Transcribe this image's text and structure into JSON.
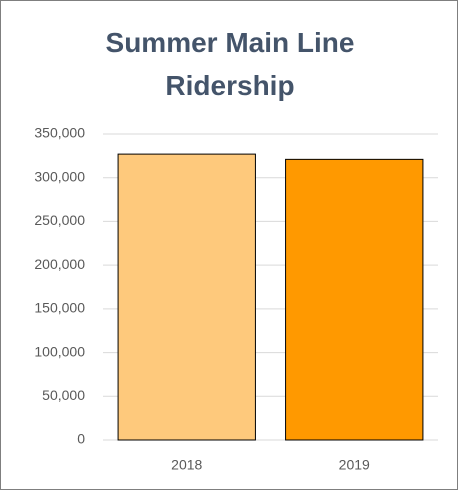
{
  "chart_data": {
    "type": "bar",
    "title": "Summer Main Line Ridership",
    "categories": [
      "2018",
      "2019"
    ],
    "values": [
      327000,
      321000
    ],
    "colors": [
      "#fec97c",
      "#ff9900"
    ],
    "ylim": [
      0,
      350000
    ],
    "yticks": [
      0,
      {
        "value": 50000,
        "label": "50,000"
      },
      {
        "value": 100000,
        "label": "100,000"
      },
      {
        "value": 150000,
        "label": "150,000"
      },
      {
        "value": 200000,
        "label": "200,000"
      },
      {
        "value": 250000,
        "label": "250,000"
      },
      {
        "value": 300000,
        "label": "300,000"
      },
      {
        "value": 350000,
        "label": "350,000"
      }
    ],
    "grid": true
  }
}
